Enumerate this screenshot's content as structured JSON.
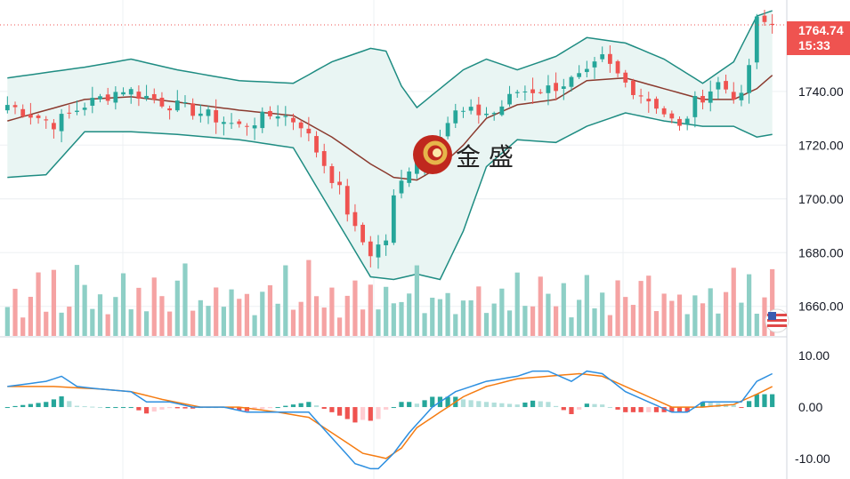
{
  "chart_data": [
    {
      "type": "candlestick",
      "title": "",
      "ylabel": "",
      "ylim": [
        1649,
        1774
      ],
      "yticks": [
        1660,
        1680,
        1700,
        1720,
        1740
      ],
      "ytick_labels": [
        "1660.00",
        "1680.00",
        "1700.00",
        "1720.00",
        "1740.00"
      ],
      "last_price": 1764.74,
      "last_price_label": "1764.74",
      "countdown_label": "15:33",
      "grid": true,
      "series": [
        {
          "name": "",
          "kind": "ohlc",
          "count": 100,
          "start": 1735,
          "end": 1764.74,
          "anchors": [
            [
              0,
              1735
            ],
            [
              6,
              1728
            ],
            [
              10,
              1735
            ],
            [
              15,
              1741
            ],
            [
              20,
              1736
            ],
            [
              25,
              1732
            ],
            [
              30,
              1727
            ],
            [
              35,
              1732
            ],
            [
              38,
              1728
            ],
            [
              40,
              1718
            ],
            [
              43,
              1703
            ],
            [
              45,
              1688
            ],
            [
              47,
              1680
            ],
            [
              49,
              1685
            ],
            [
              50,
              1700
            ],
            [
              52,
              1712
            ],
            [
              55,
              1722
            ],
            [
              58,
              1732
            ],
            [
              63,
              1732
            ],
            [
              66,
              1740
            ],
            [
              70,
              1741
            ],
            [
              75,
              1746
            ],
            [
              77,
              1752
            ],
            [
              80,
              1743
            ],
            [
              84,
              1735
            ],
            [
              87,
              1726
            ],
            [
              89,
              1736
            ],
            [
              92,
              1743
            ],
            [
              95,
              1737
            ],
            [
              96,
              1750
            ],
            [
              97,
              1766
            ],
            [
              99,
              1764.74
            ]
          ]
        },
        {
          "name": "",
          "kind": "bollinger_upper",
          "anchors": [
            [
              0,
              1745
            ],
            [
              5,
              1747
            ],
            [
              10,
              1749
            ],
            [
              16,
              1752
            ],
            [
              22,
              1748
            ],
            [
              30,
              1744
            ],
            [
              37,
              1743
            ],
            [
              42,
              1751
            ],
            [
              47,
              1756
            ],
            [
              49,
              1755
            ],
            [
              51,
              1742
            ],
            [
              53,
              1734
            ],
            [
              56,
              1741
            ],
            [
              59,
              1748
            ],
            [
              62,
              1752
            ],
            [
              66,
              1748
            ],
            [
              71,
              1753
            ],
            [
              75,
              1760
            ],
            [
              80,
              1758
            ],
            [
              85,
              1752
            ],
            [
              90,
              1743
            ],
            [
              94,
              1751
            ],
            [
              97,
              1768
            ],
            [
              99,
              1770
            ]
          ]
        },
        {
          "name": "",
          "kind": "bollinger_middle",
          "anchors": [
            [
              0,
              1729
            ],
            [
              5,
              1733
            ],
            [
              10,
              1737
            ],
            [
              16,
              1738
            ],
            [
              22,
              1736
            ],
            [
              30,
              1733
            ],
            [
              37,
              1731
            ],
            [
              42,
              1723
            ],
            [
              47,
              1713
            ],
            [
              50,
              1708
            ],
            [
              53,
              1707
            ],
            [
              56,
              1712
            ],
            [
              59,
              1720
            ],
            [
              62,
              1730
            ],
            [
              66,
              1735
            ],
            [
              71,
              1737
            ],
            [
              75,
              1744
            ],
            [
              80,
              1745
            ],
            [
              85,
              1741
            ],
            [
              90,
              1737
            ],
            [
              94,
              1737
            ],
            [
              97,
              1741
            ],
            [
              99,
              1746
            ]
          ]
        },
        {
          "name": "",
          "kind": "bollinger_lower",
          "anchors": [
            [
              0,
              1708
            ],
            [
              5,
              1709
            ],
            [
              10,
              1725
            ],
            [
              16,
              1725
            ],
            [
              22,
              1724
            ],
            [
              30,
              1722
            ],
            [
              37,
              1719
            ],
            [
              42,
              1695
            ],
            [
              47,
              1671
            ],
            [
              50,
              1670
            ],
            [
              53,
              1672
            ],
            [
              56,
              1670
            ],
            [
              59,
              1688
            ],
            [
              62,
              1712
            ],
            [
              66,
              1722
            ],
            [
              71,
              1721
            ],
            [
              75,
              1727
            ],
            [
              80,
              1732
            ],
            [
              85,
              1729
            ],
            [
              90,
              1727
            ],
            [
              94,
              1727
            ],
            [
              97,
              1723
            ],
            [
              99,
              1724
            ]
          ]
        }
      ]
    },
    {
      "type": "bar",
      "name": "volume",
      "count": 100,
      "pattern": [
        0.45,
        0.6,
        0.3,
        0.55,
        0.8,
        0.4,
        0.95,
        0.35,
        0.5,
        1.0,
        0.65,
        0.4,
        0.7,
        0.3,
        0.55,
        0.85,
        0.45,
        0.6,
        0.35,
        0.75,
        0.5,
        0.4,
        0.65,
        0.9,
        0.3,
        0.55,
        0.45,
        0.7,
        0.35,
        0.6
      ],
      "up_color": "#8ecfc6",
      "down_color": "#f5a3a3"
    },
    {
      "type": "line",
      "name": "macd",
      "ylim": [
        -14,
        13.5
      ],
      "yticks": [
        10,
        0,
        -10
      ],
      "ytick_labels": [
        "10.00",
        "0.00",
        "-10.00"
      ],
      "series": [
        {
          "name": "",
          "role": "macd",
          "color": "#2d8fe0",
          "anchors": [
            [
              0,
              4
            ],
            [
              5,
              5
            ],
            [
              7,
              6
            ],
            [
              9,
              4
            ],
            [
              12,
              3.5
            ],
            [
              16,
              3
            ],
            [
              18,
              1
            ],
            [
              21,
              1
            ],
            [
              24,
              0
            ],
            [
              28,
              0
            ],
            [
              31,
              -1
            ],
            [
              35,
              -1
            ],
            [
              39,
              -1
            ],
            [
              42,
              -6
            ],
            [
              45,
              -11
            ],
            [
              47,
              -12
            ],
            [
              48,
              -12
            ],
            [
              50,
              -9
            ],
            [
              52,
              -5
            ],
            [
              55,
              0
            ],
            [
              58,
              3
            ],
            [
              62,
              5
            ],
            [
              66,
              6
            ],
            [
              68,
              7
            ],
            [
              70,
              7
            ],
            [
              73,
              5
            ],
            [
              75,
              7
            ],
            [
              77,
              6.5
            ],
            [
              80,
              3
            ],
            [
              83,
              1
            ],
            [
              86,
              -1
            ],
            [
              88,
              -1
            ],
            [
              90,
              1
            ],
            [
              93,
              1
            ],
            [
              95,
              1
            ],
            [
              97,
              5
            ],
            [
              99,
              6.5
            ]
          ]
        },
        {
          "name": "",
          "role": "signal",
          "color": "#f57c12",
          "anchors": [
            [
              0,
              4
            ],
            [
              6,
              4
            ],
            [
              12,
              3.5
            ],
            [
              16,
              3
            ],
            [
              20,
              1.5
            ],
            [
              25,
              0
            ],
            [
              30,
              0
            ],
            [
              35,
              -1
            ],
            [
              39,
              -2
            ],
            [
              43,
              -6
            ],
            [
              46,
              -9
            ],
            [
              49,
              -10
            ],
            [
              51,
              -8
            ],
            [
              53,
              -4
            ],
            [
              56,
              -1
            ],
            [
              59,
              2
            ],
            [
              62,
              4
            ],
            [
              66,
              5.5
            ],
            [
              70,
              6
            ],
            [
              74,
              6.5
            ],
            [
              77,
              6
            ],
            [
              80,
              4
            ],
            [
              83,
              2
            ],
            [
              86,
              0
            ],
            [
              90,
              0
            ],
            [
              94,
              0.5
            ],
            [
              97,
              2.5
            ],
            [
              99,
              4
            ]
          ]
        }
      ],
      "histogram_colors": {
        "pos_strong": "#26a69a",
        "pos_weak": "#b2dfdb",
        "neg_strong": "#ef5350",
        "neg_weak": "#ffcdd2"
      }
    }
  ],
  "logo": {
    "text": "金 盛"
  },
  "colors": {
    "up": "#26a69a",
    "down": "#ef5350",
    "band": "#1e8c82",
    "middle": "#8b3a2e",
    "band_fill": "#e9f5f3",
    "badge": "#ef5350",
    "grid": "#eef0f3",
    "price_line": "#ef5350"
  }
}
